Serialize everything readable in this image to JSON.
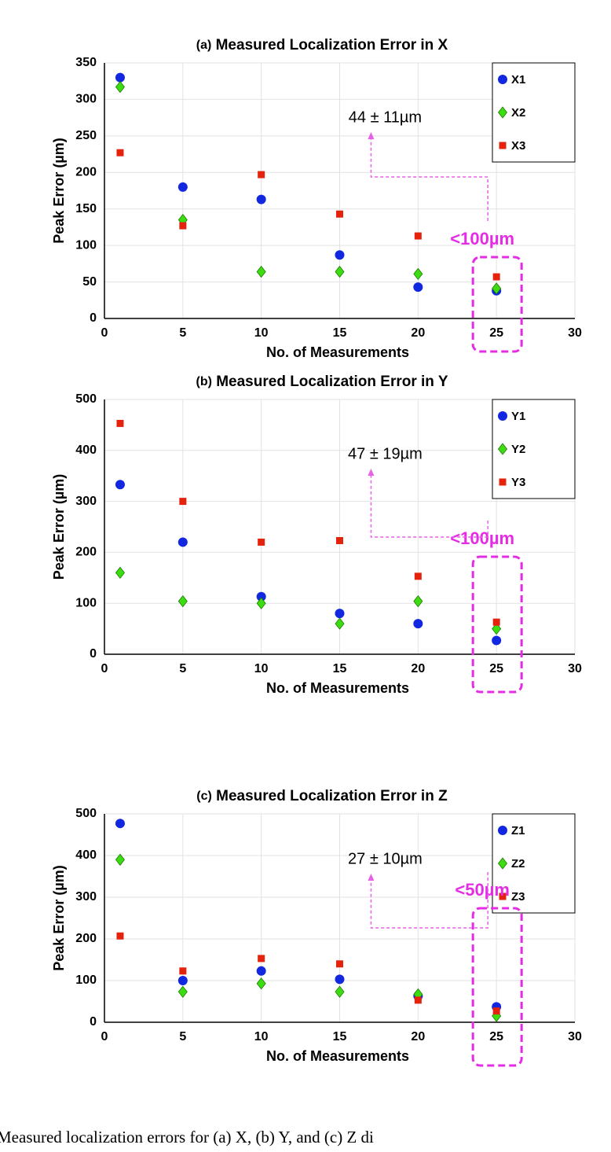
{
  "chart_data": [
    {
      "type": "scatter",
      "panel": "(a)",
      "title": "Measured Localization Error in X",
      "x_label": "No. of Measurements",
      "y_label": "Peak Error (µm)",
      "x": [
        1,
        5,
        10,
        15,
        20,
        25
      ],
      "series": [
        {
          "name": "X1",
          "color": "#1228e0",
          "marker": "circle",
          "values": [
            330,
            180,
            163,
            87,
            43,
            38
          ]
        },
        {
          "name": "X2",
          "color": "#3ddc12",
          "marker": "diamond",
          "values": [
            317,
            135,
            64,
            64,
            61,
            41
          ]
        },
        {
          "name": "X3",
          "color": "#e5220c",
          "marker": "square",
          "values": [
            227,
            127,
            197,
            143,
            113,
            57
          ]
        }
      ],
      "xlim": [
        0,
        30
      ],
      "xticks": [
        0,
        5,
        10,
        15,
        20,
        25,
        30
      ],
      "ylim": [
        0,
        350
      ],
      "yticks": [
        0,
        50,
        100,
        150,
        200,
        250,
        300,
        350
      ],
      "grid": true,
      "legend": "top-right",
      "annotations": [
        "44 ± 11µm",
        "<100µm"
      ]
    },
    {
      "type": "scatter",
      "panel": "(b)",
      "title": "Measured Localization Error in Y",
      "x_label": "No. of Measurements",
      "y_label": "Peak Error (µm)",
      "x": [
        1,
        5,
        10,
        15,
        20,
        25
      ],
      "series": [
        {
          "name": "Y1",
          "color": "#1228e0",
          "marker": "circle",
          "values": [
            333,
            220,
            113,
            80,
            60,
            27
          ]
        },
        {
          "name": "Y2",
          "color": "#3ddc12",
          "marker": "diamond",
          "values": [
            160,
            104,
            100,
            60,
            104,
            50
          ]
        },
        {
          "name": "Y3",
          "color": "#e5220c",
          "marker": "square",
          "values": [
            453,
            300,
            220,
            223,
            153,
            63
          ]
        }
      ],
      "xlim": [
        0,
        30
      ],
      "xticks": [
        0,
        5,
        10,
        15,
        20,
        25,
        30
      ],
      "ylim": [
        0,
        500
      ],
      "yticks": [
        0,
        100,
        200,
        300,
        400,
        500
      ],
      "grid": true,
      "legend": "top-right",
      "annotations": [
        "47 ± 19µm",
        "<100µm"
      ]
    },
    {
      "type": "scatter",
      "panel": "(c)",
      "title": "Measured Localization Error in Z",
      "x_label": "No. of Measurements",
      "y_label": "Peak Error (µm)",
      "x": [
        1,
        5,
        10,
        15,
        20,
        25
      ],
      "series": [
        {
          "name": "Z1",
          "color": "#1228e0",
          "marker": "circle",
          "values": [
            477,
            100,
            123,
            103,
            63,
            37
          ]
        },
        {
          "name": "Z2",
          "color": "#3ddc12",
          "marker": "diamond",
          "values": [
            390,
            73,
            93,
            73,
            67,
            15
          ]
        },
        {
          "name": "Z3",
          "color": "#e5220c",
          "marker": "square",
          "values": [
            207,
            123,
            153,
            140,
            53,
            27
          ]
        }
      ],
      "xlim": [
        0,
        30
      ],
      "xticks": [
        0,
        5,
        10,
        15,
        20,
        25,
        30
      ],
      "ylim": [
        0,
        500
      ],
      "yticks": [
        0,
        100,
        200,
        300,
        400,
        500
      ],
      "grid": true,
      "legend": "top-right",
      "annotations": [
        "27 ± 10µm",
        "<50µm"
      ]
    }
  ],
  "caption": "Measured localization errors for (a) X, (b) Y, and (c) Z di"
}
